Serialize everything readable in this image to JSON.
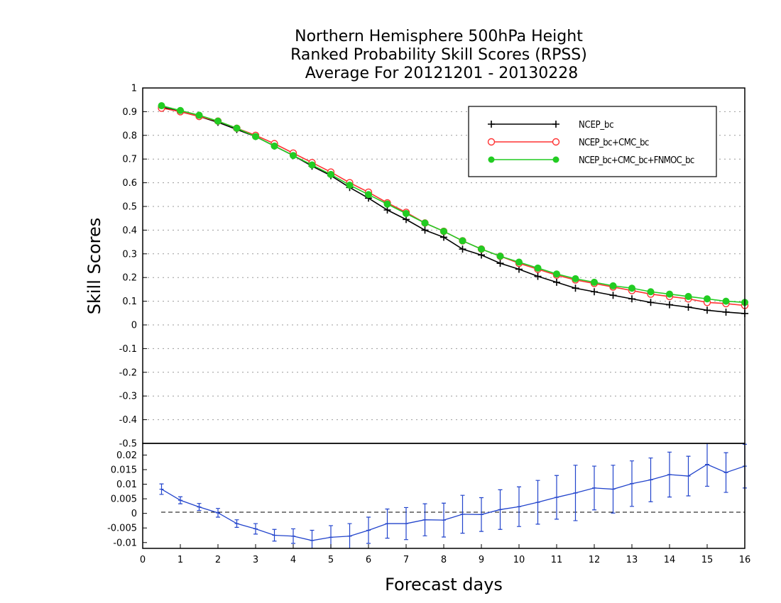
{
  "titles": [
    "Northern Hemisphere 500hPa Height",
    "Ranked Probability Skill Scores (RPSS)",
    "Average For 20121201 - 20130228"
  ],
  "chart_data": [
    {
      "type": "line",
      "ylabel": "Skill Scores",
      "ylim": [
        -0.5,
        1
      ],
      "yticks": [
        1,
        0.9,
        0.8,
        0.7,
        0.6,
        0.5,
        0.4,
        0.3,
        0.2,
        0.1,
        0,
        -0.1,
        -0.2,
        -0.3,
        -0.4,
        -0.5
      ],
      "ytick_labels": [
        "1",
        "0.9",
        "0.8",
        "0.7",
        "0.6",
        "0.5",
        "0.4",
        "0.3",
        "0.2",
        "0.1",
        "0",
        "-0.1",
        "-0.2",
        "-0.3",
        "-0.4",
        "-0.5"
      ],
      "xlim": [
        0,
        16
      ],
      "grid": true,
      "legend_position": "top-right",
      "x": [
        0.5,
        1,
        1.5,
        2,
        2.5,
        3,
        3.5,
        4,
        4.5,
        5,
        5.5,
        6,
        6.5,
        7,
        7.5,
        8,
        8.5,
        9,
        9.5,
        10,
        10.5,
        11,
        11.5,
        12,
        12.5,
        13,
        13.5,
        14,
        14.5,
        15,
        15.5,
        16
      ],
      "series": [
        {
          "name": "NCEP_bc",
          "color": "#000000",
          "marker": "plus",
          "values": [
            0.92,
            0.9,
            0.88,
            0.855,
            0.825,
            0.795,
            0.755,
            0.715,
            0.67,
            0.63,
            0.58,
            0.535,
            0.485,
            0.445,
            0.4,
            0.37,
            0.32,
            0.295,
            0.26,
            0.235,
            0.205,
            0.18,
            0.155,
            0.14,
            0.125,
            0.11,
            0.095,
            0.085,
            0.075,
            0.062,
            0.054,
            0.048
          ]
        },
        {
          "name": "NCEP_bc+CMC_bc",
          "color": "#ff3333",
          "marker": "open-circle",
          "values": [
            0.915,
            0.9,
            0.88,
            0.86,
            0.83,
            0.8,
            0.765,
            0.725,
            0.685,
            0.645,
            0.6,
            0.56,
            0.515,
            0.475,
            0.43,
            0.395,
            0.355,
            0.32,
            0.29,
            0.26,
            0.235,
            0.21,
            0.19,
            0.175,
            0.16,
            0.145,
            0.13,
            0.12,
            0.11,
            0.095,
            0.09,
            0.082
          ]
        },
        {
          "name": "NCEP_bc+CMC_bc+FNMOC_bc",
          "color": "#22cc22",
          "marker": "filled-circle",
          "values": [
            0.925,
            0.905,
            0.885,
            0.86,
            0.83,
            0.795,
            0.755,
            0.715,
            0.675,
            0.635,
            0.59,
            0.55,
            0.51,
            0.47,
            0.43,
            0.395,
            0.355,
            0.32,
            0.29,
            0.265,
            0.24,
            0.215,
            0.195,
            0.18,
            0.165,
            0.155,
            0.14,
            0.13,
            0.12,
            0.11,
            0.1,
            0.095
          ]
        }
      ]
    },
    {
      "type": "line",
      "xlabel": "Forecast days",
      "ylim": [
        -0.012,
        0.024
      ],
      "yticks": [
        0.02,
        0.015,
        0.01,
        0.005,
        0,
        -0.005,
        -0.01
      ],
      "ytick_labels": [
        "0.02",
        "0.015",
        "0.01",
        "0.005",
        "0",
        "-0.005",
        "-0.01"
      ],
      "xlim": [
        0,
        16
      ],
      "xticks": [
        0,
        1,
        2,
        3,
        4,
        5,
        6,
        7,
        8,
        9,
        10,
        11,
        12,
        13,
        14,
        15,
        16
      ],
      "xtick_labels": [
        "0",
        "1",
        "2",
        "3",
        "4",
        "5",
        "6",
        "7",
        "8",
        "9",
        "10",
        "11",
        "12",
        "13",
        "14",
        "15",
        "16"
      ],
      "zero_line": true,
      "x": [
        0.5,
        1,
        1.5,
        2,
        2.5,
        3,
        3.5,
        4,
        4.5,
        5,
        5.5,
        6,
        6.5,
        7,
        7.5,
        8,
        8.5,
        9,
        9.5,
        10,
        10.5,
        11,
        11.5,
        12,
        12.5,
        13,
        13.5,
        14,
        14.5,
        15,
        15.5,
        16
      ],
      "series": [
        {
          "name": "",
          "color": "#2244cc",
          "marker": "errorbar",
          "values": [
            0.0083,
            0.0045,
            0.0022,
            0.0002,
            -0.0035,
            -0.0053,
            -0.0075,
            -0.0078,
            -0.0093,
            -0.0082,
            -0.0078,
            -0.0058,
            -0.0035,
            -0.0035,
            -0.0022,
            -0.0023,
            -0.0003,
            -0.0004,
            0.0013,
            0.0023,
            0.0038,
            0.0055,
            0.007,
            0.0087,
            0.0083,
            0.0102,
            0.0115,
            0.0133,
            0.0128,
            0.0168,
            0.014,
            0.0162
          ],
          "error": [
            0.0018,
            0.0012,
            0.0012,
            0.0015,
            0.0013,
            0.0018,
            0.002,
            0.0025,
            0.0035,
            0.004,
            0.0043,
            0.0045,
            0.005,
            0.0055,
            0.0055,
            0.0058,
            0.0065,
            0.0058,
            0.0068,
            0.0068,
            0.0075,
            0.0075,
            0.0095,
            0.0075,
            0.0082,
            0.0078,
            0.0075,
            0.0077,
            0.0068,
            0.0075,
            0.0068,
            0.0075
          ]
        }
      ]
    }
  ]
}
